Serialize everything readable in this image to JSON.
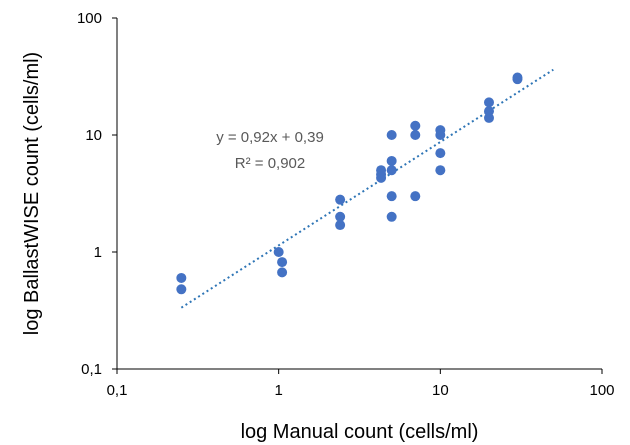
{
  "chart_data": {
    "type": "scatter",
    "xlabel": "log Manual count (cells/ml)",
    "ylabel": "log BallastWISE count (cells/ml)",
    "x_scale": "log",
    "y_scale": "log",
    "xlim": [
      0.1,
      100
    ],
    "ylim": [
      0.1,
      100
    ],
    "x_ticks": [
      "0,1",
      "1",
      "10",
      "100"
    ],
    "y_ticks": [
      "0,1",
      "1",
      "10",
      "100"
    ],
    "grid": false,
    "series": [
      {
        "color": "#4472C4",
        "points": [
          [
            0.25,
            0.6
          ],
          [
            0.25,
            0.48
          ],
          [
            1.0,
            1.0
          ],
          [
            1.05,
            0.82
          ],
          [
            1.05,
            0.67
          ],
          [
            2.4,
            2.8
          ],
          [
            2.4,
            2.0
          ],
          [
            2.4,
            1.7
          ],
          [
            4.3,
            5.0
          ],
          [
            4.3,
            4.6
          ],
          [
            4.3,
            4.3
          ],
          [
            5.0,
            10.0
          ],
          [
            5.0,
            6.0
          ],
          [
            5.0,
            5.0
          ],
          [
            5.0,
            3.0
          ],
          [
            5.0,
            2.0
          ],
          [
            7.0,
            12.0
          ],
          [
            7.0,
            10.0
          ],
          [
            7.0,
            3.0
          ],
          [
            10.0,
            11.0
          ],
          [
            10.0,
            10.0
          ],
          [
            10.0,
            7.0
          ],
          [
            10.0,
            5.0
          ],
          [
            20.0,
            19.0
          ],
          [
            20.0,
            16.0
          ],
          [
            20.0,
            14.0
          ],
          [
            30.0,
            31.0
          ],
          [
            30.0,
            30.0
          ]
        ]
      }
    ],
    "trendline": {
      "color": "#2E75B6",
      "style": "dotted",
      "x_range": [
        0.25,
        50
      ],
      "equation": "y = 0,92x + 0,39",
      "r_squared": "R² = 0,902"
    }
  }
}
